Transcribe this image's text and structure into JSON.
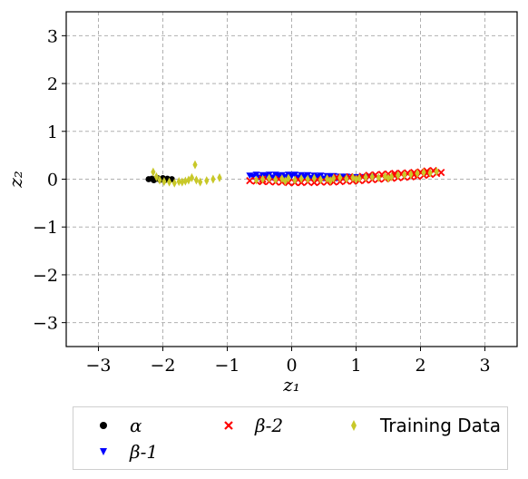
{
  "chart_data": {
    "type": "scatter",
    "xlabel": "z₁",
    "ylabel": "z₂",
    "xlim": [
      -3.5,
      3.5
    ],
    "ylim": [
      -3.5,
      3.5
    ],
    "xticks": [
      -3,
      -2,
      -1,
      0,
      1,
      2,
      3
    ],
    "yticks": [
      -3,
      -2,
      -1,
      0,
      1,
      2,
      3
    ],
    "xtick_labels": [
      "−3",
      "−2",
      "−1",
      "0",
      "1",
      "2",
      "3"
    ],
    "ytick_labels": [
      "−3",
      "−2",
      "−1",
      "0",
      "1",
      "2",
      "3"
    ],
    "grid": true,
    "legend_position": "below",
    "series": [
      {
        "name": "α",
        "marker": "circle",
        "color": "#000000",
        "points": [
          [
            -2.22,
            0.0
          ],
          [
            -2.17,
            0.01
          ],
          [
            -2.12,
            0.0
          ],
          [
            -2.08,
            0.02
          ],
          [
            -2.05,
            -0.01
          ],
          [
            -2.0,
            0.02
          ],
          [
            -1.97,
            -0.02
          ],
          [
            -1.93,
            0.01
          ],
          [
            -1.9,
            -0.02
          ],
          [
            -1.86,
            0.0
          ],
          [
            -2.14,
            -0.02
          ],
          [
            -2.02,
            -0.01
          ]
        ]
      },
      {
        "name": "β-1",
        "marker": "triangle_down",
        "color": "#0000ff",
        "points": [
          [
            -0.65,
            0.08
          ],
          [
            -0.55,
            0.1
          ],
          [
            -0.45,
            0.09
          ],
          [
            -0.35,
            0.1
          ],
          [
            -0.25,
            0.1
          ],
          [
            -0.15,
            0.09
          ],
          [
            -0.05,
            0.1
          ],
          [
            0.05,
            0.1
          ],
          [
            0.15,
            0.09
          ],
          [
            0.25,
            0.09
          ],
          [
            0.35,
            0.08
          ],
          [
            0.45,
            0.08
          ],
          [
            0.55,
            0.07
          ],
          [
            0.65,
            0.07
          ],
          [
            0.75,
            0.06
          ],
          [
            0.85,
            0.06
          ],
          [
            0.95,
            0.05
          ],
          [
            1.05,
            0.05
          ],
          [
            1.15,
            0.05
          ],
          [
            1.25,
            0.06
          ],
          [
            -0.6,
            0.06
          ],
          [
            -0.4,
            0.07
          ],
          [
            -0.2,
            0.07
          ],
          [
            0.0,
            0.07
          ],
          [
            0.2,
            0.06
          ],
          [
            0.4,
            0.05
          ],
          [
            0.6,
            0.05
          ],
          [
            0.8,
            0.04
          ],
          [
            1.0,
            0.03
          ],
          [
            -0.5,
            0.04
          ],
          [
            -0.3,
            0.04
          ],
          [
            -0.1,
            0.05
          ],
          [
            0.1,
            0.04
          ],
          [
            0.3,
            0.03
          ],
          [
            0.5,
            0.02
          ],
          [
            0.7,
            0.02
          ]
        ]
      },
      {
        "name": "β-2",
        "marker": "x",
        "color": "#ff0000",
        "points": [
          [
            -0.65,
            -0.03
          ],
          [
            -0.55,
            -0.04
          ],
          [
            -0.45,
            -0.05
          ],
          [
            -0.35,
            -0.05
          ],
          [
            -0.25,
            -0.06
          ],
          [
            -0.15,
            -0.06
          ],
          [
            -0.05,
            -0.07
          ],
          [
            0.05,
            -0.07
          ],
          [
            0.15,
            -0.07
          ],
          [
            0.25,
            -0.06
          ],
          [
            0.35,
            -0.07
          ],
          [
            0.45,
            -0.06
          ],
          [
            0.55,
            -0.06
          ],
          [
            0.65,
            -0.06
          ],
          [
            0.75,
            -0.05
          ],
          [
            0.85,
            -0.04
          ],
          [
            0.95,
            -0.04
          ],
          [
            1.05,
            -0.03
          ],
          [
            1.15,
            -0.02
          ],
          [
            1.25,
            -0.01
          ],
          [
            1.35,
            0.0
          ],
          [
            1.45,
            0.01
          ],
          [
            1.55,
            0.02
          ],
          [
            1.65,
            0.03
          ],
          [
            1.75,
            0.04
          ],
          [
            1.85,
            0.05
          ],
          [
            1.95,
            0.06
          ],
          [
            2.05,
            0.08
          ],
          [
            2.15,
            0.1
          ],
          [
            2.25,
            0.12
          ],
          [
            2.32,
            0.14
          ],
          [
            1.3,
            0.09
          ],
          [
            1.4,
            0.1
          ],
          [
            1.5,
            0.11
          ],
          [
            1.6,
            0.12
          ],
          [
            1.7,
            0.12
          ],
          [
            1.8,
            0.13
          ],
          [
            1.9,
            0.14
          ],
          [
            2.0,
            0.15
          ],
          [
            2.1,
            0.17
          ],
          [
            2.2,
            0.18
          ],
          [
            0.7,
            0.04
          ],
          [
            0.9,
            0.05
          ],
          [
            1.1,
            0.06
          ],
          [
            1.2,
            0.08
          ],
          [
            -0.45,
            0.0
          ],
          [
            -0.2,
            0.0
          ],
          [
            0.1,
            -0.01
          ],
          [
            0.4,
            -0.01
          ],
          [
            0.6,
            0.0
          ],
          [
            0.8,
            0.01
          ],
          [
            1.0,
            0.02
          ],
          [
            1.6,
            0.07
          ],
          [
            1.9,
            0.09
          ],
          [
            2.1,
            0.12
          ]
        ]
      },
      {
        "name": "Training Data",
        "marker": "thin_diamond",
        "color": "#c8c828",
        "points": [
          [
            -2.15,
            0.15
          ],
          [
            -2.1,
            0.05
          ],
          [
            -2.05,
            -0.02
          ],
          [
            -1.98,
            -0.05
          ],
          [
            -1.9,
            -0.06
          ],
          [
            -1.82,
            -0.08
          ],
          [
            -1.75,
            -0.05
          ],
          [
            -1.7,
            -0.06
          ],
          [
            -1.65,
            -0.04
          ],
          [
            -1.6,
            -0.02
          ],
          [
            -1.55,
            0.03
          ],
          [
            -1.5,
            0.3
          ],
          [
            -1.48,
            -0.02
          ],
          [
            -1.42,
            -0.06
          ],
          [
            -1.32,
            -0.03
          ],
          [
            -1.22,
            0.0
          ],
          [
            -1.12,
            0.03
          ],
          [
            -0.55,
            -0.02
          ],
          [
            -0.45,
            0.0
          ],
          [
            -0.35,
            0.02
          ],
          [
            -0.25,
            -0.01
          ],
          [
            -0.15,
            0.01
          ],
          [
            -0.05,
            0.02
          ],
          [
            0.05,
            -0.02
          ],
          [
            0.15,
            0.01
          ],
          [
            0.25,
            0.0
          ],
          [
            0.35,
            0.02
          ],
          [
            0.45,
            -0.01
          ],
          [
            0.55,
            0.01
          ],
          [
            0.65,
            0.02
          ],
          [
            0.75,
            0.03
          ],
          [
            0.85,
            0.01
          ],
          [
            0.95,
            0.03
          ],
          [
            1.05,
            0.02
          ],
          [
            1.15,
            0.04
          ],
          [
            1.25,
            0.05
          ],
          [
            1.35,
            0.03
          ],
          [
            1.45,
            0.06
          ],
          [
            1.55,
            0.05
          ],
          [
            1.65,
            0.08
          ],
          [
            1.75,
            0.09
          ],
          [
            1.85,
            0.1
          ],
          [
            1.95,
            0.12
          ],
          [
            2.05,
            0.14
          ],
          [
            2.15,
            0.13
          ],
          [
            2.25,
            0.16
          ],
          [
            -0.1,
            -0.04
          ],
          [
            0.6,
            -0.03
          ],
          [
            1.0,
            0.0
          ],
          [
            1.5,
            0.02
          ]
        ]
      }
    ]
  }
}
